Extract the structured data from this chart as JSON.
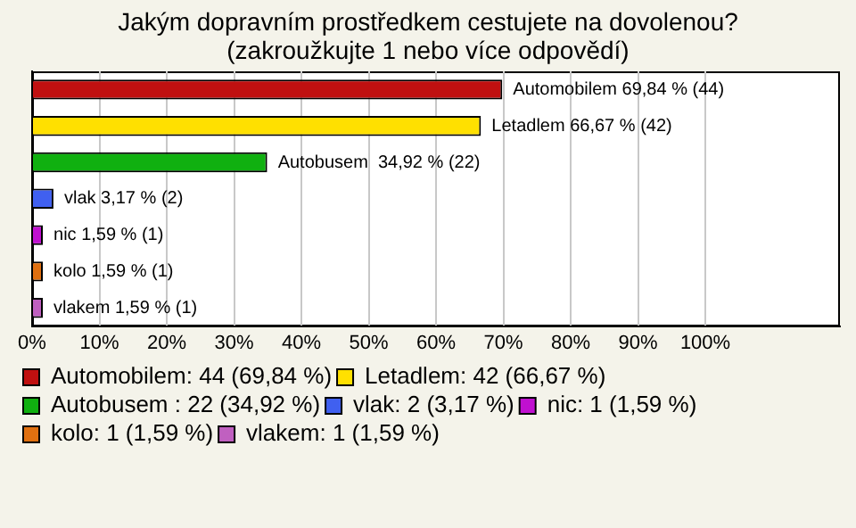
{
  "chart_data": {
    "type": "bar",
    "orientation": "horizontal",
    "title": "Jakým dopravním prostředkem cestujete na dovolenou?",
    "subtitle": "(zakroužkujte 1 nebo více odpovědí)",
    "categories": [
      null,
      null,
      null,
      null,
      null,
      null,
      null
    ],
    "series": [
      {
        "name": "Automobilem: 44 (69,84 %)",
        "color": "#c01010",
        "values": [
          69.84,
          null,
          null,
          null,
          null,
          null,
          null
        ],
        "value_labels": [
          "Automobilem 69,84 % (44)",
          null,
          null,
          null,
          null,
          null,
          null
        ]
      },
      {
        "name": "Letadlem: 42 (66,67 %)",
        "color": "#ffe000",
        "values": [
          null,
          66.67,
          null,
          null,
          null,
          null,
          null
        ],
        "value_labels": [
          null,
          "Letadlem 66,67 % (42)",
          null,
          null,
          null,
          null,
          null
        ]
      },
      {
        "name": "Autobusem : 22 (34,92 %)",
        "color": "#10b010",
        "values": [
          null,
          null,
          34.92,
          null,
          null,
          null,
          null
        ],
        "value_labels": [
          null,
          null,
          "Autobusem  34,92 % (22)",
          null,
          null,
          null,
          null
        ]
      },
      {
        "name": "vlak: 2 (3,17 %)",
        "color": "#4060f0",
        "values": [
          null,
          null,
          null,
          3.17,
          null,
          null,
          null
        ],
        "value_labels": [
          null,
          null,
          null,
          "vlak 3,17 % (2)",
          null,
          null,
          null
        ]
      },
      {
        "name": "nic: 1 (1,59 %)",
        "color": "#c010d0",
        "values": [
          null,
          null,
          null,
          null,
          1.59,
          null,
          null
        ],
        "value_labels": [
          null,
          null,
          null,
          null,
          "nic 1,59 % (1)",
          null,
          null
        ]
      },
      {
        "name": "kolo: 1 (1,59 %)",
        "color": "#e07010",
        "values": [
          null,
          null,
          null,
          null,
          null,
          1.59,
          null
        ],
        "value_labels": [
          null,
          null,
          null,
          null,
          null,
          "kolo 1,59 % (1)",
          null
        ]
      },
      {
        "name": "vlakem: 1 (1,59 %)",
        "color": "#c060c0",
        "values": [
          null,
          null,
          null,
          null,
          null,
          null,
          1.59
        ],
        "value_labels": [
          null,
          null,
          null,
          null,
          null,
          null,
          "vlakem 1,59 % (1)"
        ]
      }
    ],
    "xlim": [
      0,
      120
    ],
    "xticks": [
      {
        "value": 0,
        "label": "0%"
      },
      {
        "value": 10,
        "label": "10%"
      },
      {
        "value": 20,
        "label": "20%"
      },
      {
        "value": 30,
        "label": "30%"
      },
      {
        "value": 40,
        "label": "40%"
      },
      {
        "value": 50,
        "label": "50%"
      },
      {
        "value": 60,
        "label": "60%"
      },
      {
        "value": 70,
        "label": "70%"
      },
      {
        "value": 80,
        "label": "80%"
      },
      {
        "value": 90,
        "label": "90%"
      },
      {
        "value": 100,
        "label": "100%"
      }
    ],
    "grid": "x",
    "tick_labels": "x",
    "legend": "bottom"
  }
}
